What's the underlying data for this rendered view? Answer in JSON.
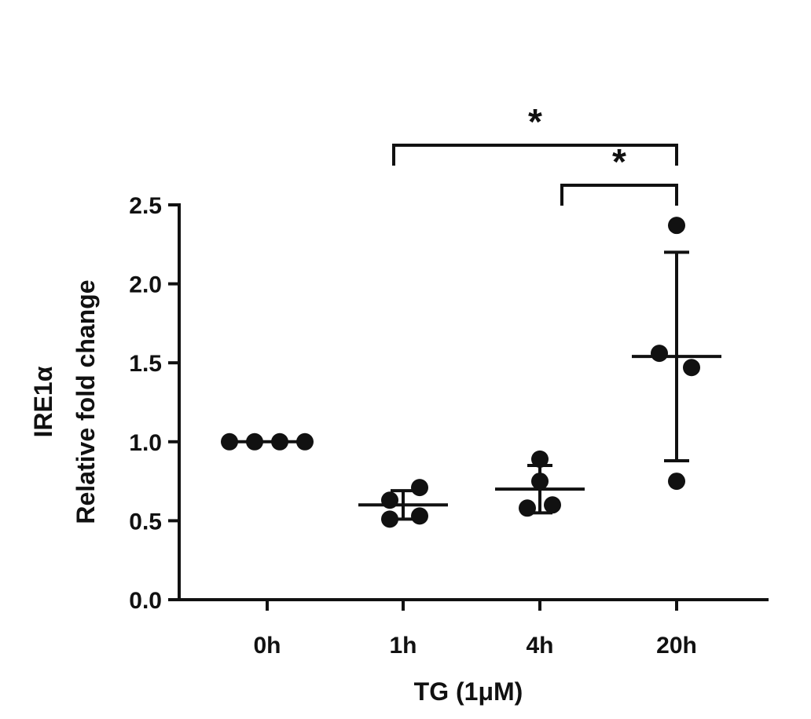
{
  "chart_data": {
    "type": "scatter",
    "xlabel": "TG (1μM)",
    "ylabel_line1": "IRE1α",
    "ylabel_line2": "Relative fold change",
    "ylim": [
      0,
      2.5
    ],
    "y_ticks": [
      "0.0",
      "0.5",
      "1.0",
      "1.5",
      "2.0",
      "2.5"
    ],
    "y_tick_values": [
      0,
      0.5,
      1.0,
      1.5,
      2.0,
      2.5
    ],
    "categories": [
      "0h",
      "1h",
      "4h",
      "20h"
    ],
    "groups": [
      {
        "category": "0h",
        "points": [
          1.0,
          1.0,
          1.0,
          1.0
        ],
        "mean": 1.0,
        "sd_low": 1.0,
        "sd_high": 1.0
      },
      {
        "category": "1h",
        "points": [
          0.63,
          0.51,
          0.71,
          0.53
        ],
        "mean": 0.6,
        "sd_low": 0.51,
        "sd_high": 0.69
      },
      {
        "category": "4h",
        "points": [
          0.89,
          0.75,
          0.58,
          0.6
        ],
        "mean": 0.7,
        "sd_low": 0.55,
        "sd_high": 0.85
      },
      {
        "category": "20h",
        "points": [
          2.37,
          1.56,
          1.47,
          0.75
        ],
        "mean": 1.54,
        "sd_low": 0.88,
        "sd_high": 2.2
      }
    ],
    "comparisons": [
      {
        "from": "1h",
        "to": "20h",
        "label": "*"
      },
      {
        "from": "4h",
        "to": "20h",
        "label": "*"
      }
    ],
    "grid": false,
    "colors": {
      "points": "#111111",
      "axis": "#111111"
    }
  }
}
